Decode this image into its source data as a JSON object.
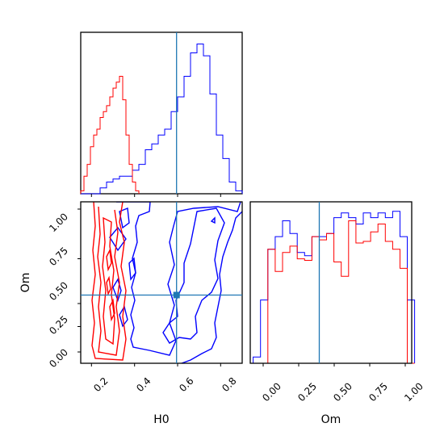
{
  "chart_data": {
    "type": "corner",
    "parameters": [
      "H0",
      "Om"
    ],
    "truths": {
      "H0": 0.6,
      "Om": 0.4
    },
    "colors": {
      "series_a": "#0000ff",
      "series_b": "#ff0000",
      "truth": "#1f77b4"
    },
    "panels": [
      {
        "id": "hist-H0",
        "type": "histogram",
        "xlim": [
          0.15,
          0.9
        ],
        "xlabel": "",
        "ylabel": "",
        "series": [
          {
            "color": "#0000ff",
            "bins": [
              0.15,
              0.18,
              0.21,
              0.24,
              0.27,
              0.3,
              0.33,
              0.36,
              0.39,
              0.42,
              0.45,
              0.48,
              0.51,
              0.54,
              0.57,
              0.6,
              0.63,
              0.66,
              0.69,
              0.72,
              0.75,
              0.78,
              0.81,
              0.84,
              0.87,
              0.9
            ],
            "counts": [
              0,
              0,
              0,
              2,
              4,
              5,
              6,
              6,
              8,
              10,
              15,
              17,
              20,
              22,
              28,
              33,
              40,
              48,
              51,
              47,
              34,
              20,
              12,
              4,
              1
            ]
          },
          {
            "color": "#ff0000",
            "bins": [
              0.15,
              0.165,
              0.18,
              0.195,
              0.21,
              0.225,
              0.24,
              0.255,
              0.27,
              0.285,
              0.3,
              0.315,
              0.33,
              0.345,
              0.36,
              0.375,
              0.39,
              0.405,
              0.42
            ],
            "counts": [
              1,
              6,
              10,
              16,
              20,
              22,
              26,
              28,
              30,
              33,
              36,
              38,
              40,
              32,
              20,
              10,
              4,
              1
            ]
          }
        ]
      },
      {
        "id": "contour-Om-H0",
        "type": "contour",
        "xlim": [
          0.15,
          0.9
        ],
        "ylim": [
          -0.05,
          1.05
        ],
        "xticks": [
          "0.2",
          "0.4",
          "0.6",
          "0.8"
        ],
        "yticks": [
          "0.00",
          "0.25",
          "0.50",
          "0.75",
          "1.00"
        ],
        "xlabel": "H0",
        "ylabel": "Om"
      },
      {
        "id": "hist-Om",
        "type": "histogram",
        "xlim": [
          -0.07,
          1.03
        ],
        "xticks": [
          "0.00",
          "0.25",
          "0.50",
          "0.75",
          "1.00"
        ],
        "xlabel": "Om",
        "series": [
          {
            "color": "#0000ff",
            "bins": [
              -0.05,
              0.0,
              0.05,
              0.1,
              0.15,
              0.2,
              0.25,
              0.3,
              0.35,
              0.4,
              0.45,
              0.5,
              0.55,
              0.6,
              0.65,
              0.7,
              0.75,
              0.8,
              0.85,
              0.9,
              0.95,
              1.0,
              1.05
            ],
            "counts": [
              4,
              40,
              72,
              80,
              90,
              82,
              70,
              68,
              80,
              80,
              82,
              92,
              95,
              92,
              88,
              95,
              92,
              95,
              92,
              96,
              80,
              40
            ]
          },
          {
            "color": "#ff0000",
            "bins": [
              -0.05,
              0.0,
              0.05,
              0.1,
              0.15,
              0.2,
              0.25,
              0.3,
              0.35,
              0.4,
              0.45,
              0.5,
              0.55,
              0.6,
              0.65,
              0.7,
              0.75,
              0.8,
              0.85,
              0.9,
              0.95,
              1.0,
              1.05
            ],
            "counts": [
              0,
              0,
              72,
              58,
              70,
              74,
              66,
              65,
              80,
              78,
              82,
              64,
              55,
              90,
              76,
              77,
              83,
              88,
              77,
              72,
              60,
              0
            ]
          }
        ]
      }
    ]
  }
}
